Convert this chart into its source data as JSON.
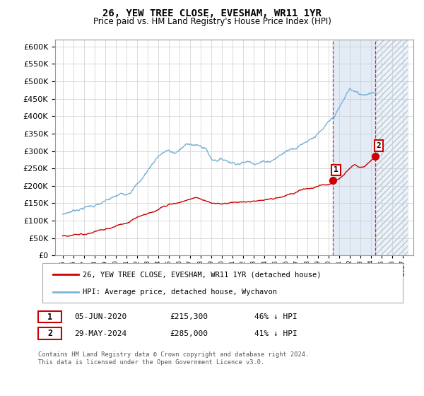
{
  "title": "26, YEW TREE CLOSE, EVESHAM, WR11 1YR",
  "subtitle": "Price paid vs. HM Land Registry's House Price Index (HPI)",
  "legend_line1": "26, YEW TREE CLOSE, EVESHAM, WR11 1YR (detached house)",
  "legend_line2": "HPI: Average price, detached house, Wychavon",
  "annotation1_label": "1",
  "annotation1_date": "05-JUN-2020",
  "annotation1_price": "£215,300",
  "annotation1_hpi": "46% ↓ HPI",
  "annotation2_label": "2",
  "annotation2_date": "29-MAY-2024",
  "annotation2_price": "£285,000",
  "annotation2_hpi": "41% ↓ HPI",
  "footer": "Contains HM Land Registry data © Crown copyright and database right 2024.\nThis data is licensed under the Open Government Licence v3.0.",
  "hpi_color": "#7ab3d4",
  "price_color": "#cc0000",
  "annotation_color": "#cc0000",
  "shaded_fill_color": "#dde8f5",
  "hatch_color": "#b8c8d8",
  "ylim": [
    0,
    620000
  ],
  "yticks": [
    0,
    50000,
    100000,
    150000,
    200000,
    250000,
    300000,
    350000,
    400000,
    450000,
    500000,
    550000,
    600000
  ],
  "sale1_x": 2020.42,
  "sale1_y": 215300,
  "sale2_x": 2024.42,
  "sale2_y": 285000,
  "shade_start": 2020.42,
  "shade_mid": 2024.42,
  "shade_end": 2027.5,
  "xlim_left": 1994.3,
  "xlim_right": 2028.0
}
